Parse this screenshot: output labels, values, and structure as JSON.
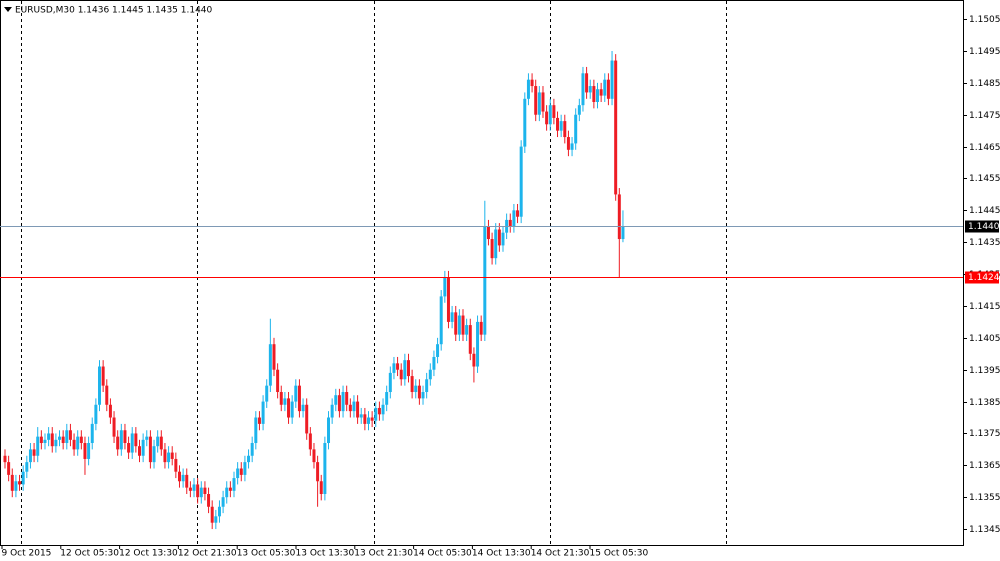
{
  "chart_data": {
    "type": "candlestick",
    "header": "EURUSD,M30  1.1436 1.1445 1.1435 1.1440",
    "up_color": "#1cb4ec",
    "down_color": "#ee1c24",
    "ylim": [
      1.134,
      1.1511
    ],
    "yticks": [
      1.1345,
      1.1355,
      1.1365,
      1.1375,
      1.1385,
      1.1395,
      1.1405,
      1.1415,
      1.1425,
      1.1435,
      1.1445,
      1.1455,
      1.1465,
      1.1475,
      1.1485,
      1.1495,
      1.1505
    ],
    "x_labels": [
      "9 Oct 2015",
      "12 Oct 05:30",
      "12 Oct 13:30",
      "12 Oct 21:30",
      "13 Oct 05:30",
      "13 Oct 13:30",
      "13 Oct 21:30",
      "14 Oct 05:30",
      "14 Oct 13:30",
      "14 Oct 21:30",
      "15 Oct 05:30"
    ],
    "price_lines": [
      {
        "value": 1.144,
        "label": "1.1440",
        "color": "#7e99b5",
        "box": "#000000"
      },
      {
        "value": 1.1424,
        "label": "1.1424",
        "color": "#ff0000",
        "box": "#ff0000"
      }
    ],
    "candles": [
      [
        1.1368,
        1.137,
        1.1364,
        1.1366
      ],
      [
        1.1366,
        1.1368,
        1.136,
        1.1362
      ],
      [
        1.1362,
        1.1364,
        1.1355,
        1.1357
      ],
      [
        1.1357,
        1.1362,
        1.1355,
        1.136
      ],
      [
        1.136,
        1.1362,
        1.1357,
        1.1359
      ],
      [
        1.1359,
        1.1365,
        1.1357,
        1.1363
      ],
      [
        1.1363,
        1.1368,
        1.1361,
        1.1366
      ],
      [
        1.1366,
        1.1372,
        1.1364,
        1.137
      ],
      [
        1.137,
        1.1372,
        1.1366,
        1.1368
      ],
      [
        1.1368,
        1.1377,
        1.1366,
        1.1374
      ],
      [
        1.1374,
        1.1376,
        1.137,
        1.1372
      ],
      [
        1.1372,
        1.1375,
        1.137,
        1.1373
      ],
      [
        1.1373,
        1.1377,
        1.1371,
        1.1375
      ],
      [
        1.1375,
        1.1377,
        1.1369,
        1.1371
      ],
      [
        1.1371,
        1.1375,
        1.1369,
        1.1373
      ],
      [
        1.1373,
        1.1376,
        1.1371,
        1.1374
      ],
      [
        1.1374,
        1.1376,
        1.137,
        1.1372
      ],
      [
        1.1372,
        1.1378,
        1.137,
        1.1376
      ],
      [
        1.1376,
        1.1378,
        1.1371,
        1.1373
      ],
      [
        1.1373,
        1.1375,
        1.1368,
        1.137
      ],
      [
        1.137,
        1.1376,
        1.1368,
        1.1374
      ],
      [
        1.1374,
        1.1376,
        1.137,
        1.1372
      ],
      [
        1.1372,
        1.1374,
        1.1362,
        1.1367
      ],
      [
        1.1367,
        1.1374,
        1.1365,
        1.1372
      ],
      [
        1.1372,
        1.138,
        1.137,
        1.1378
      ],
      [
        1.1378,
        1.1386,
        1.1376,
        1.1384
      ],
      [
        1.1384,
        1.1398,
        1.1382,
        1.1396
      ],
      [
        1.1396,
        1.1398,
        1.1388,
        1.139
      ],
      [
        1.139,
        1.1392,
        1.1382,
        1.1384
      ],
      [
        1.1384,
        1.1386,
        1.1378,
        1.138
      ],
      [
        1.138,
        1.1382,
        1.1372,
        1.1374
      ],
      [
        1.1374,
        1.1376,
        1.1368,
        1.137
      ],
      [
        1.137,
        1.1378,
        1.1368,
        1.1376
      ],
      [
        1.1376,
        1.1378,
        1.137,
        1.1372
      ],
      [
        1.1372,
        1.1374,
        1.1367,
        1.1369
      ],
      [
        1.1369,
        1.1377,
        1.1367,
        1.1375
      ],
      [
        1.1375,
        1.1377,
        1.1369,
        1.1371
      ],
      [
        1.1371,
        1.1373,
        1.1366,
        1.1368
      ],
      [
        1.1368,
        1.1375,
        1.1366,
        1.1373
      ],
      [
        1.1373,
        1.1376,
        1.1371,
        1.1374
      ],
      [
        1.1374,
        1.1376,
        1.1364,
        1.1366
      ],
      [
        1.1366,
        1.1373,
        1.1364,
        1.1371
      ],
      [
        1.1371,
        1.1376,
        1.1369,
        1.1374
      ],
      [
        1.1374,
        1.1376,
        1.1368,
        1.137
      ],
      [
        1.137,
        1.1372,
        1.1364,
        1.1366
      ],
      [
        1.1366,
        1.1371,
        1.1364,
        1.1369
      ],
      [
        1.1369,
        1.1371,
        1.1365,
        1.1367
      ],
      [
        1.1367,
        1.1369,
        1.1361,
        1.1363
      ],
      [
        1.1363,
        1.1365,
        1.1358,
        1.136
      ],
      [
        1.136,
        1.1364,
        1.1358,
        1.1362
      ],
      [
        1.1362,
        1.1364,
        1.1356,
        1.1358
      ],
      [
        1.1358,
        1.136,
        1.1355,
        1.1357
      ],
      [
        1.1357,
        1.1361,
        1.1355,
        1.1359
      ],
      [
        1.1359,
        1.1361,
        1.1353,
        1.1355
      ],
      [
        1.1355,
        1.136,
        1.1353,
        1.1358
      ],
      [
        1.1358,
        1.136,
        1.1354,
        1.1356
      ],
      [
        1.1356,
        1.1358,
        1.135,
        1.1352
      ],
      [
        1.1352,
        1.1354,
        1.1345,
        1.1347
      ],
      [
        1.1347,
        1.1351,
        1.1345,
        1.1349
      ],
      [
        1.1349,
        1.1354,
        1.1347,
        1.1352
      ],
      [
        1.1352,
        1.1357,
        1.135,
        1.1355
      ],
      [
        1.1355,
        1.136,
        1.1353,
        1.1358
      ],
      [
        1.1358,
        1.136,
        1.1355,
        1.1357
      ],
      [
        1.1357,
        1.1363,
        1.1355,
        1.1361
      ],
      [
        1.1361,
        1.1366,
        1.1359,
        1.1364
      ],
      [
        1.1364,
        1.1366,
        1.136,
        1.1362
      ],
      [
        1.1362,
        1.1368,
        1.136,
        1.1366
      ],
      [
        1.1366,
        1.137,
        1.1364,
        1.1368
      ],
      [
        1.1368,
        1.1374,
        1.1366,
        1.1372
      ],
      [
        1.1372,
        1.1382,
        1.137,
        1.138
      ],
      [
        1.138,
        1.1382,
        1.1376,
        1.1378
      ],
      [
        1.1378,
        1.1387,
        1.1376,
        1.1385
      ],
      [
        1.1385,
        1.1392,
        1.1383,
        1.139
      ],
      [
        1.139,
        1.1411,
        1.1388,
        1.1403
      ],
      [
        1.1403,
        1.1405,
        1.1393,
        1.1395
      ],
      [
        1.1395,
        1.1397,
        1.1386,
        1.1388
      ],
      [
        1.1388,
        1.139,
        1.1382,
        1.1384
      ],
      [
        1.1384,
        1.1388,
        1.1382,
        1.1386
      ],
      [
        1.1386,
        1.1388,
        1.1378,
        1.138
      ],
      [
        1.138,
        1.1387,
        1.1378,
        1.1385
      ],
      [
        1.1385,
        1.1392,
        1.1383,
        1.139
      ],
      [
        1.139,
        1.1392,
        1.138,
        1.1382
      ],
      [
        1.1382,
        1.1386,
        1.138,
        1.1384
      ],
      [
        1.1384,
        1.1386,
        1.1373,
        1.1375
      ],
      [
        1.1375,
        1.1377,
        1.1368,
        1.137
      ],
      [
        1.137,
        1.1372,
        1.1364,
        1.1366
      ],
      [
        1.1366,
        1.1368,
        1.1352,
        1.136
      ],
      [
        1.136,
        1.1362,
        1.1354,
        1.1356
      ],
      [
        1.1356,
        1.1374,
        1.1354,
        1.1372
      ],
      [
        1.1372,
        1.1382,
        1.137,
        1.138
      ],
      [
        1.138,
        1.1386,
        1.1378,
        1.1384
      ],
      [
        1.1384,
        1.1389,
        1.1382,
        1.1387
      ],
      [
        1.1387,
        1.1389,
        1.138,
        1.1382
      ],
      [
        1.1382,
        1.139,
        1.138,
        1.1388
      ],
      [
        1.1388,
        1.139,
        1.1382,
        1.1384
      ],
      [
        1.1384,
        1.1386,
        1.138,
        1.1382
      ],
      [
        1.1382,
        1.1387,
        1.138,
        1.1385
      ],
      [
        1.1385,
        1.1387,
        1.1378,
        1.138
      ],
      [
        1.138,
        1.1383,
        1.1378,
        1.1381
      ],
      [
        1.1381,
        1.1383,
        1.1376,
        1.1378
      ],
      [
        1.1378,
        1.1382,
        1.1376,
        1.138
      ],
      [
        1.138,
        1.1382,
        1.1377,
        1.1379
      ],
      [
        1.1379,
        1.1385,
        1.1377,
        1.1383
      ],
      [
        1.1383,
        1.1385,
        1.1379,
        1.1381
      ],
      [
        1.1381,
        1.1386,
        1.1379,
        1.1384
      ],
      [
        1.1384,
        1.139,
        1.1382,
        1.1388
      ],
      [
        1.1388,
        1.1396,
        1.1386,
        1.1394
      ],
      [
        1.1394,
        1.1399,
        1.1392,
        1.1397
      ],
      [
        1.1397,
        1.1399,
        1.1393,
        1.1395
      ],
      [
        1.1395,
        1.1397,
        1.139,
        1.1392
      ],
      [
        1.1392,
        1.14,
        1.139,
        1.1398
      ],
      [
        1.1398,
        1.14,
        1.1391,
        1.1393
      ],
      [
        1.1393,
        1.1395,
        1.1386,
        1.1388
      ],
      [
        1.1388,
        1.1392,
        1.1386,
        1.139
      ],
      [
        1.139,
        1.1392,
        1.1384,
        1.1386
      ],
      [
        1.1386,
        1.139,
        1.1384,
        1.1388
      ],
      [
        1.1388,
        1.1394,
        1.1386,
        1.1392
      ],
      [
        1.1392,
        1.1397,
        1.139,
        1.1395
      ],
      [
        1.1395,
        1.1401,
        1.1393,
        1.1399
      ],
      [
        1.1399,
        1.1405,
        1.1397,
        1.1403
      ],
      [
        1.1403,
        1.142,
        1.1401,
        1.1418
      ],
      [
        1.1418,
        1.1426,
        1.1416,
        1.1424
      ],
      [
        1.1424,
        1.1426,
        1.1408,
        1.141
      ],
      [
        1.141,
        1.1415,
        1.1408,
        1.1413
      ],
      [
        1.1413,
        1.1415,
        1.1404,
        1.1406
      ],
      [
        1.1406,
        1.1414,
        1.1404,
        1.1412
      ],
      [
        1.1412,
        1.1414,
        1.1404,
        1.1406
      ],
      [
        1.1406,
        1.1411,
        1.1404,
        1.1409
      ],
      [
        1.1409,
        1.1411,
        1.1398,
        1.14
      ],
      [
        1.14,
        1.1402,
        1.1391,
        1.1396
      ],
      [
        1.1396,
        1.1412,
        1.1394,
        1.141
      ],
      [
        1.141,
        1.1412,
        1.1404,
        1.1406
      ],
      [
        1.1406,
        1.1448,
        1.1404,
        1.144
      ],
      [
        1.144,
        1.1442,
        1.1434,
        1.1436
      ],
      [
        1.1436,
        1.1438,
        1.1428,
        1.143
      ],
      [
        1.143,
        1.1441,
        1.1428,
        1.1439
      ],
      [
        1.1439,
        1.1441,
        1.1432,
        1.1434
      ],
      [
        1.1434,
        1.144,
        1.1432,
        1.1438
      ],
      [
        1.1438,
        1.1444,
        1.1436,
        1.1442
      ],
      [
        1.1442,
        1.1444,
        1.1438,
        1.144
      ],
      [
        1.144,
        1.1447,
        1.1438,
        1.1445
      ],
      [
        1.1445,
        1.1447,
        1.1441,
        1.1443
      ],
      [
        1.1443,
        1.1467,
        1.1441,
        1.1465
      ],
      [
        1.1465,
        1.1482,
        1.1463,
        1.148
      ],
      [
        1.148,
        1.1488,
        1.1478,
        1.1486
      ],
      [
        1.1486,
        1.1488,
        1.1482,
        1.1484
      ],
      [
        1.1484,
        1.1486,
        1.1473,
        1.1475
      ],
      [
        1.1475,
        1.1484,
        1.1473,
        1.1482
      ],
      [
        1.1482,
        1.1484,
        1.1474,
        1.1476
      ],
      [
        1.1476,
        1.1478,
        1.147,
        1.1472
      ],
      [
        1.1472,
        1.148,
        1.147,
        1.1478
      ],
      [
        1.1478,
        1.148,
        1.1472,
        1.1474
      ],
      [
        1.1474,
        1.1476,
        1.1468,
        1.147
      ],
      [
        1.147,
        1.1475,
        1.1468,
        1.1473
      ],
      [
        1.1473,
        1.1475,
        1.1466,
        1.1468
      ],
      [
        1.1468,
        1.147,
        1.1462,
        1.1464
      ],
      [
        1.1464,
        1.1468,
        1.1462,
        1.1466
      ],
      [
        1.1466,
        1.1477,
        1.1464,
        1.1475
      ],
      [
        1.1475,
        1.148,
        1.1473,
        1.1478
      ],
      [
        1.1478,
        1.149,
        1.1476,
        1.1488
      ],
      [
        1.1488,
        1.149,
        1.148,
        1.1482
      ],
      [
        1.1482,
        1.1486,
        1.148,
        1.1484
      ],
      [
        1.1484,
        1.1486,
        1.1477,
        1.1479
      ],
      [
        1.1479,
        1.1485,
        1.1477,
        1.1483
      ],
      [
        1.1483,
        1.1485,
        1.1479,
        1.1481
      ],
      [
        1.1481,
        1.1488,
        1.1479,
        1.1486
      ],
      [
        1.1486,
        1.1488,
        1.1478,
        1.148
      ],
      [
        1.148,
        1.1495,
        1.1478,
        1.1492
      ],
      [
        1.1492,
        1.1494,
        1.1448,
        1.145
      ],
      [
        1.145,
        1.1452,
        1.1424,
        1.1436
      ],
      [
        1.1436,
        1.1445,
        1.1435,
        1.144
      ]
    ]
  }
}
